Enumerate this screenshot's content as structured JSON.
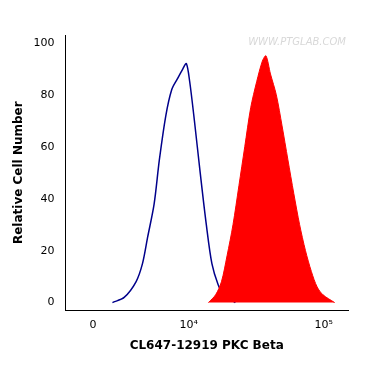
{
  "chart_data": {
    "type": "line",
    "x_label": "CL647-12919 PKC Beta",
    "y_label": "Relative Cell Number",
    "annotations": [
      "WWW.PTGLAB.COM"
    ],
    "log": "x",
    "grid": false,
    "xlim": [
      -2000,
      150000
    ],
    "xticks": [
      0,
      {
        "value": 10000,
        "label": "10⁴"
      },
      {
        "value": 100000,
        "label": "10⁵"
      }
    ],
    "ylim": [
      -3,
      103
    ],
    "yticks": [
      0,
      20,
      40,
      60,
      80,
      100
    ],
    "series": [
      {
        "type": "area",
        "color": "#ff0000",
        "x": [
          14200,
          16100,
          17800,
          19600,
          21700,
          24000,
          26500,
          29300,
          32400,
          35700,
          37900,
          40900,
          45100,
          49700,
          54800,
          60500,
          66700,
          73600,
          81200,
          89500,
          98700,
          120000
        ],
        "values": [
          0,
          3,
          8,
          18,
          30,
          45,
          60,
          75,
          85,
          93,
          95,
          88,
          80,
          68,
          55,
          42,
          30,
          20,
          12,
          6,
          3,
          0
        ]
      },
      {
        "type": "line",
        "color": "#00008b",
        "x": [
          1400,
          2300,
          3300,
          3900,
          4400,
          5100,
          5700,
          6500,
          7300,
          8100,
          9000,
          9600,
          10200,
          11100,
          12300,
          13700,
          15100,
          16800,
          18500,
          22600
        ],
        "values": [
          0,
          2,
          8,
          15,
          25,
          38,
          55,
          72,
          82,
          86,
          90,
          92,
          85,
          70,
          50,
          30,
          15,
          7,
          3,
          0
        ]
      }
    ]
  }
}
